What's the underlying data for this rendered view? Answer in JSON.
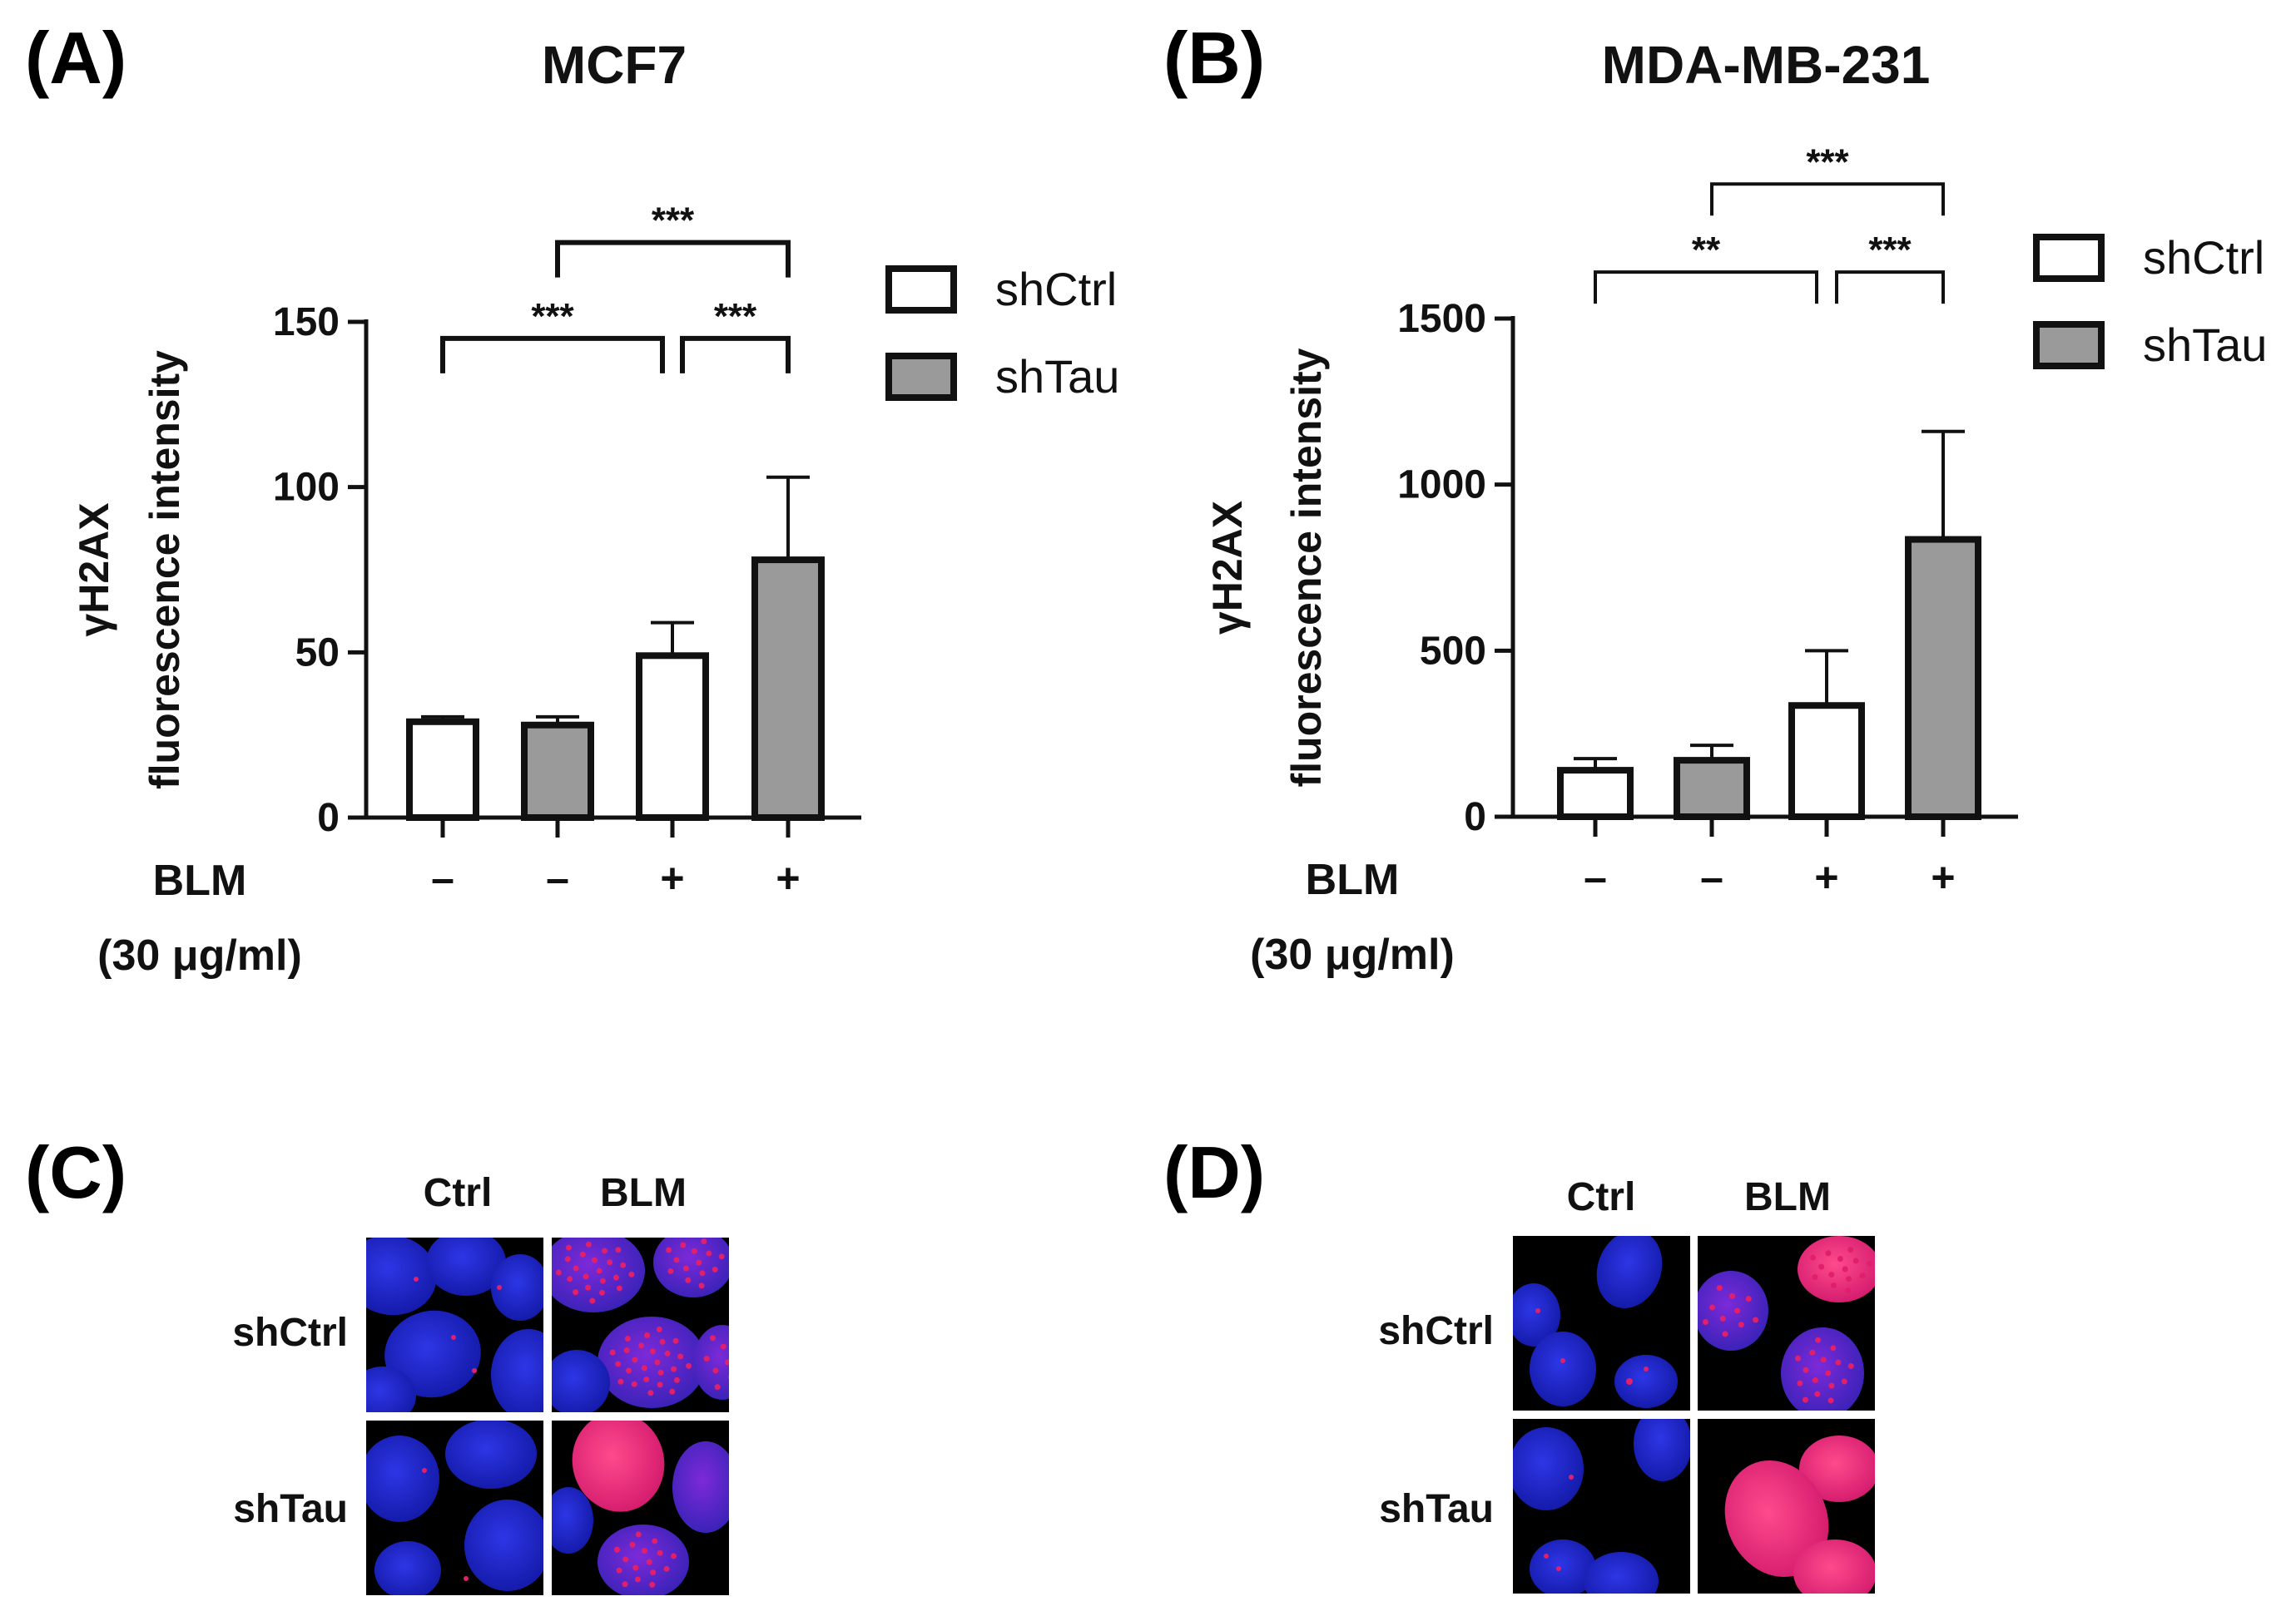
{
  "colors": {
    "shctrl_fill": "#ffffff",
    "shtau_fill": "#9a9a9a",
    "axis": "#111111",
    "micro_bg": "#000000",
    "nucleus": "#1a22c8",
    "foci": "#e0206a"
  },
  "chart_data": [
    {
      "panel": "(A)",
      "type": "bar",
      "title": "MCF7",
      "ylabel_line1": "γH2AX",
      "ylabel_line2": "fluorescence intensity",
      "ylim": [
        0,
        150
      ],
      "yticks": [
        0,
        50,
        100,
        150
      ],
      "categories": [
        "–",
        "–",
        "+",
        "+"
      ],
      "x_row_label": "BLM",
      "x_row_sublabel": "(30 μg/ml)",
      "bars": [
        {
          "series": "shCtrl",
          "value": 29,
          "error": 1.5
        },
        {
          "series": "shTau",
          "value": 28,
          "error": 2.5
        },
        {
          "series": "shCtrl",
          "value": 49,
          "error": 10
        },
        {
          "series": "shTau",
          "value": 78,
          "error": 25
        }
      ],
      "legend": [
        "shCtrl",
        "shTau"
      ],
      "brackets": [
        {
          "from": 0,
          "to": 2,
          "level": 145,
          "label": "***"
        },
        {
          "from": 2,
          "to": 3,
          "level": 145,
          "label": "***"
        },
        {
          "from": 1,
          "to": 3,
          "level": 174,
          "label": "***"
        }
      ]
    },
    {
      "panel": "(B)",
      "type": "bar",
      "title": "MDA-MB-231",
      "ylabel_line1": "γH2AX",
      "ylabel_line2": "fluorescence intensity",
      "ylim": [
        0,
        1500
      ],
      "yticks": [
        0,
        500,
        1000,
        1500
      ],
      "categories": [
        "–",
        "–",
        "+",
        "+"
      ],
      "x_row_label": "BLM",
      "x_row_sublabel": "(30 μg/ml)",
      "bars": [
        {
          "series": "shCtrl",
          "value": 140,
          "error": 35
        },
        {
          "series": "shTau",
          "value": 170,
          "error": 45
        },
        {
          "series": "shCtrl",
          "value": 335,
          "error": 165
        },
        {
          "series": "shTau",
          "value": 835,
          "error": 325
        }
      ],
      "legend": [
        "shCtrl",
        "shTau"
      ],
      "brackets": [
        {
          "from": 0,
          "to": 2,
          "level": 1640,
          "label": "**"
        },
        {
          "from": 2,
          "to": 3,
          "level": 1640,
          "label": "***"
        },
        {
          "from": 1,
          "to": 3,
          "level": 1905,
          "label": "***"
        }
      ]
    }
  ],
  "micrographs": [
    {
      "panel": "(C)",
      "col_labels": [
        "Ctrl",
        "BLM"
      ],
      "row_labels": [
        "shCtrl",
        "shTau"
      ],
      "image_labels": [
        "MCF7 shCtrl Ctrl",
        "MCF7 shCtrl BLM",
        "MCF7 shTau Ctrl",
        "MCF7 shTau BLM"
      ]
    },
    {
      "panel": "(D)",
      "col_labels": [
        "Ctrl",
        "BLM"
      ],
      "row_labels": [
        "shCtrl",
        "shTau"
      ],
      "image_labels": [
        "MDA-MB-231 shCtrl Ctrl",
        "MDA-MB-231 shCtrl BLM",
        "MDA-MB-231 shTau Ctrl",
        "MDA-MB-231 shTau BLM"
      ]
    }
  ]
}
